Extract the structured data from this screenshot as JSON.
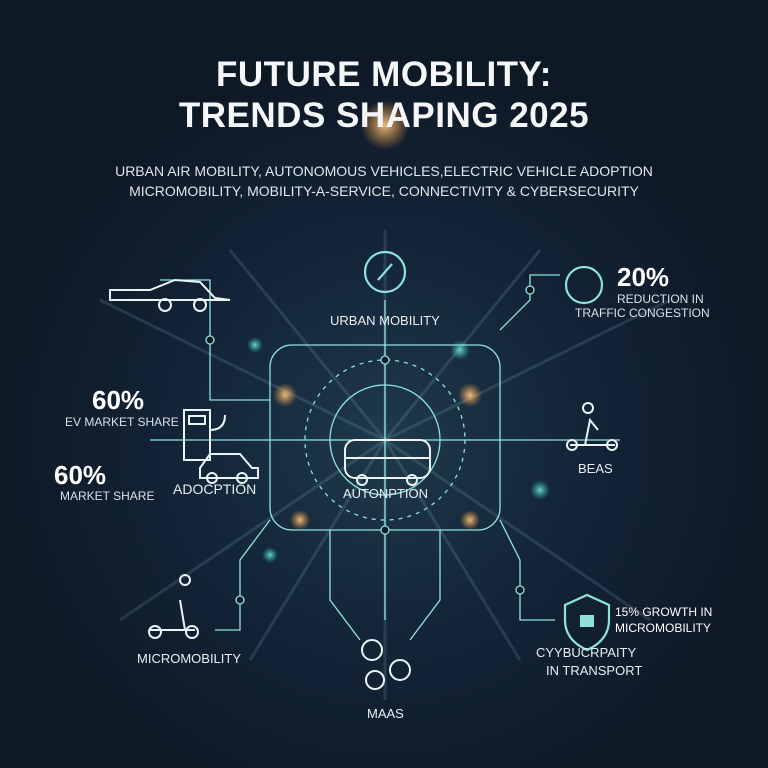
{
  "title": {
    "line1": "FUTURE MOBILITY:",
    "line2": "TRENDS SHAPING 2025"
  },
  "subtitle": {
    "line1": "URBAN AIR MOBILITY, AUTONOMOUS VEHICLES,ELECTRIC VEHICLE ADOPTION",
    "line2": "MICROMOBILITY, MOBILITY-A-SERVICE, CONNECTIVITY & CYBERSECURITY"
  },
  "nodes": {
    "urban": "URBAN MOBILITY",
    "center": "AUTONPTION",
    "adoption": "ADOCPTION",
    "beas": "BEAS",
    "micromobility": "MICROMOBILITY",
    "maas": "MAAS",
    "cyber_line1": "CYYBUCRPAITY",
    "cyber_line2": "IN TRANSPORT"
  },
  "stats": {
    "traffic": {
      "value": "20%",
      "line1": "REDUCTION IN",
      "line2": "TRAFFIC CONGESTION"
    },
    "ev1": {
      "value": "60%",
      "label": "EV MARKET SHARE"
    },
    "ev2": {
      "value": "60%",
      "label": "MARKET SHARE"
    },
    "micro": {
      "line1": "15% GROWTH IN",
      "line2": "MICROMOBILITY"
    }
  },
  "colors": {
    "background": "#0e1926",
    "accent": "#7fe0d4",
    "glow": "#ffb055"
  }
}
